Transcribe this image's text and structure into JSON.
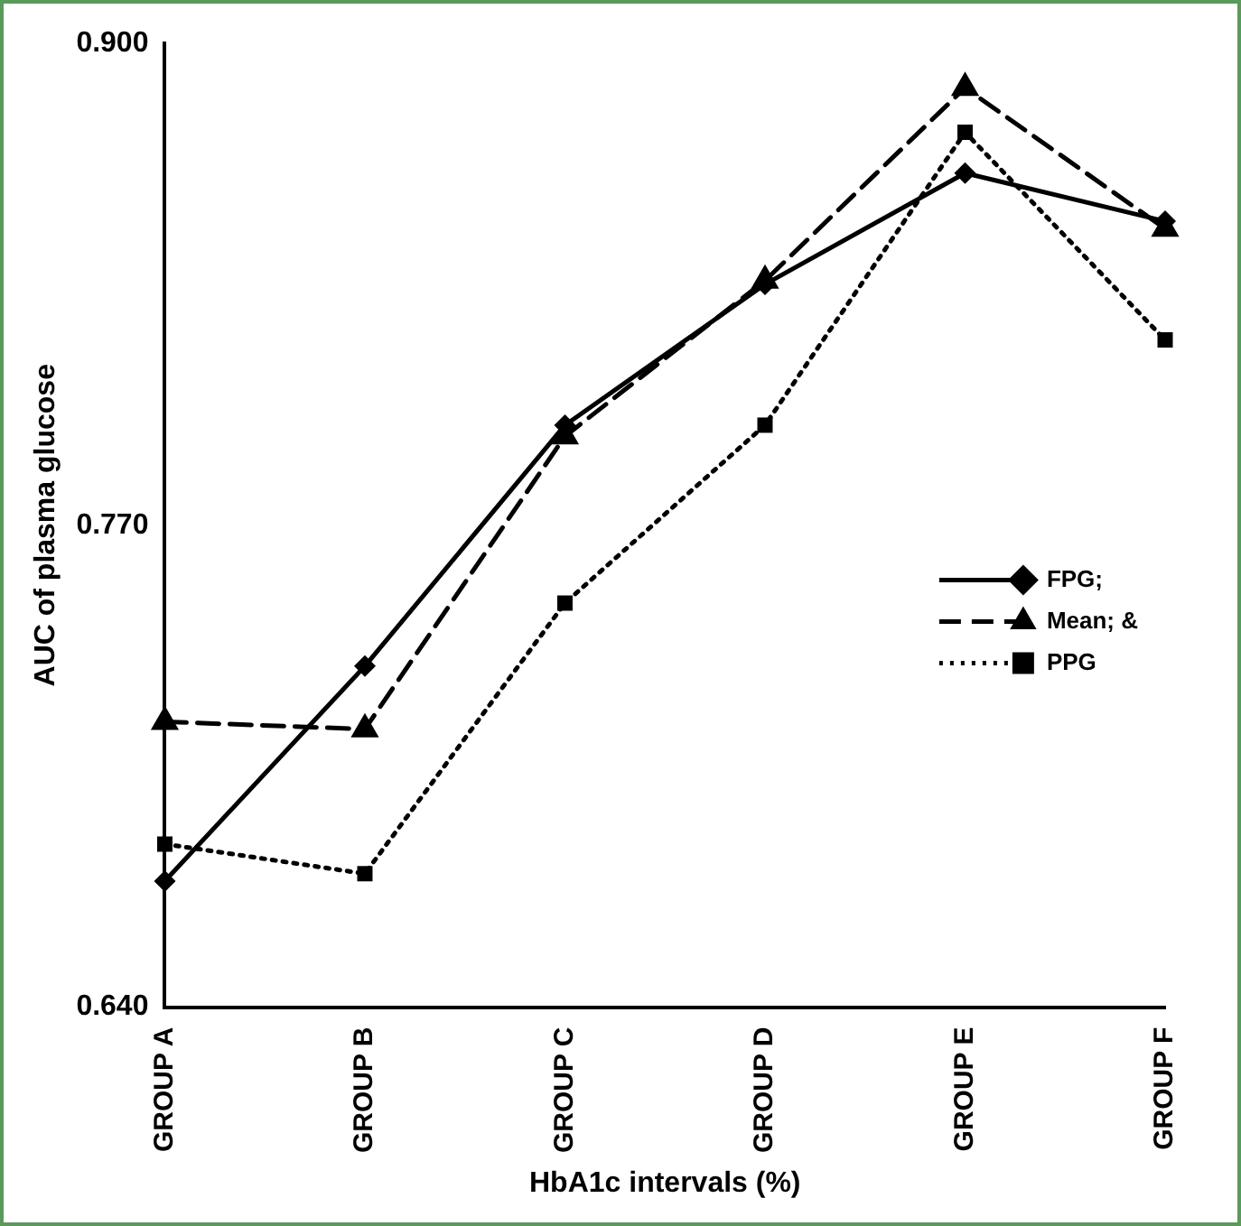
{
  "chart_data": {
    "type": "line",
    "xlabel": "HbA1c intervals (%)",
    "ylabel": "AUC of plasma glucose",
    "categories": [
      "GROUP A",
      "GROUP B",
      "GROUP C",
      "GROUP D",
      "GROUP E",
      "GROUP F"
    ],
    "series": [
      {
        "name": "FPG;",
        "color": "#000000",
        "marker": "diamond",
        "line_style": "solid",
        "values": [
          0.674,
          0.732,
          0.797,
          0.835,
          0.865,
          0.852
        ]
      },
      {
        "name": "Mean; &",
        "color": "#000000",
        "marker": "triangle",
        "line_style": "dashed",
        "values": [
          0.717,
          0.715,
          0.794,
          0.836,
          0.888,
          0.85
        ]
      },
      {
        "name": "PPG",
        "color": "#000000",
        "marker": "square",
        "line_style": "dotted",
        "values": [
          0.684,
          0.676,
          0.749,
          0.797,
          0.876,
          0.82
        ]
      }
    ],
    "ylim": [
      0.64,
      0.9
    ],
    "yticks": [
      {
        "value": 0.64,
        "label": "0.640"
      },
      {
        "value": 0.77,
        "label": "0.770"
      },
      {
        "value": 0.9,
        "label": "0.900"
      }
    ],
    "grid": false,
    "legend": "right"
  }
}
